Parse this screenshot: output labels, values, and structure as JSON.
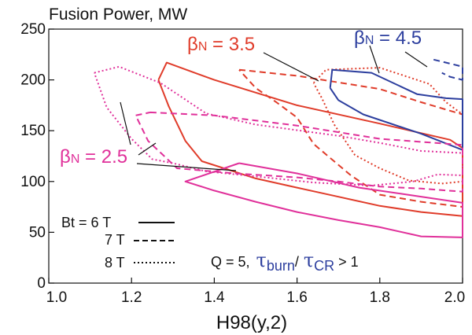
{
  "chart_data": {
    "type": "line",
    "title": "Fusion Power, MW",
    "xlabel": "H98(y,2)",
    "ylabel": "",
    "xlim": [
      1.0,
      2.0
    ],
    "ylim": [
      0,
      250
    ],
    "x_ticks": [
      "1.0",
      "1.2",
      "1.4",
      "1.6",
      "1.8",
      "2.0"
    ],
    "y_ticks": [
      "0",
      "50",
      "100",
      "150",
      "200",
      "250"
    ],
    "grid": false,
    "colors": {
      "beta_3_5": "#e03c2a",
      "beta_4_5": "#2c3e9e",
      "beta_2_5": "#e0309a",
      "axis": "#111111"
    },
    "beta_labels": [
      {
        "id": "beta35",
        "symbol": "β",
        "sub": "N",
        "rest": " = 3.5",
        "color": "#e03c2a"
      },
      {
        "id": "beta45",
        "symbol": "β",
        "sub": "N",
        "rest": " = 4.5",
        "color": "#2c3e9e"
      },
      {
        "id": "beta25",
        "symbol": "β",
        "sub": "N",
        "rest": " = 2.5",
        "color": "#e0309a"
      }
    ],
    "legend": [
      {
        "label": "Bt = 6 T",
        "style": "solid"
      },
      {
        "label": "7 T",
        "style": "dashed"
      },
      {
        "label": "8 T",
        "style": "dotted"
      }
    ],
    "condition": {
      "prefix": "Q = 5,",
      "tau": "τ",
      "burn": "burn",
      "cr": "CR",
      "suffix": " > 1"
    },
    "series": [
      {
        "beta": "3.5",
        "bt": "6",
        "color": "#e03c2a",
        "style": "solid",
        "points": [
          [
            1.265,
            200
          ],
          [
            1.285,
            217
          ],
          [
            1.4,
            200
          ],
          [
            1.6,
            175
          ],
          [
            1.8,
            157
          ],
          [
            1.97,
            141
          ],
          [
            2.0,
            133
          ],
          [
            2.0,
            66
          ],
          [
            1.9,
            70
          ],
          [
            1.8,
            76
          ],
          [
            1.7,
            85
          ],
          [
            1.6,
            94
          ],
          [
            1.5,
            103
          ],
          [
            1.37,
            120
          ],
          [
            1.33,
            140
          ],
          [
            1.29,
            174
          ],
          [
            1.265,
            200
          ]
        ]
      },
      {
        "beta": "3.5",
        "bt": "7",
        "color": "#e03c2a",
        "style": "dashed",
        "points": [
          [
            1.46,
            210
          ],
          [
            1.6,
            204
          ],
          [
            1.8,
            191
          ],
          [
            1.9,
            178
          ],
          [
            2.0,
            166
          ],
          [
            2.0,
            75
          ],
          [
            1.9,
            80
          ],
          [
            1.8,
            87
          ],
          [
            1.73,
            106
          ],
          [
            1.64,
            137
          ],
          [
            1.6,
            163
          ],
          [
            1.55,
            178
          ],
          [
            1.5,
            192
          ],
          [
            1.46,
            210
          ]
        ]
      },
      {
        "beta": "3.5",
        "bt": "8",
        "color": "#e03c2a",
        "style": "dotted",
        "points": [
          [
            1.64,
            197
          ],
          [
            1.67,
            210
          ],
          [
            1.8,
            212
          ],
          [
            1.92,
            196
          ],
          [
            1.96,
            178
          ],
          [
            2.0,
            166
          ],
          [
            2.0,
            100
          ],
          [
            1.95,
            98
          ],
          [
            1.87,
            101
          ],
          [
            1.8,
            113
          ],
          [
            1.74,
            126
          ],
          [
            1.69,
            156
          ],
          [
            1.66,
            182
          ],
          [
            1.64,
            197
          ]
        ]
      },
      {
        "beta": "4.5",
        "bt": "6",
        "color": "#2c3e9e",
        "style": "solid",
        "points": [
          [
            1.68,
            192
          ],
          [
            1.685,
            210
          ],
          [
            1.78,
            207
          ],
          [
            1.89,
            186
          ],
          [
            1.96,
            182
          ],
          [
            2.0,
            181
          ],
          [
            2.0,
            131
          ],
          [
            1.9,
            147
          ],
          [
            1.76,
            166
          ],
          [
            1.7,
            180
          ],
          [
            1.68,
            192
          ]
        ]
      },
      {
        "beta": "4.5",
        "bt": "7",
        "color": "#2c3e9e",
        "style": "dashed",
        "points": [
          [
            1.93,
            220
          ],
          [
            1.98,
            215
          ],
          [
            2.0,
            213
          ],
          [
            2.0,
            200
          ],
          [
            1.97,
            203
          ],
          [
            1.95,
            207
          ]
        ]
      },
      {
        "beta": "2.5",
        "bt": "6",
        "color": "#e0309a",
        "style": "solid",
        "points": [
          [
            1.46,
            118
          ],
          [
            1.6,
            108
          ],
          [
            1.75,
            94
          ],
          [
            1.85,
            88
          ],
          [
            2.0,
            79
          ],
          [
            2.0,
            45
          ],
          [
            1.9,
            46
          ],
          [
            1.8,
            55
          ],
          [
            1.7,
            62
          ],
          [
            1.6,
            70
          ],
          [
            1.5,
            80
          ],
          [
            1.4,
            91
          ],
          [
            1.33,
            100
          ],
          [
            1.46,
            118
          ]
        ]
      },
      {
        "beta": "2.5",
        "bt": "7",
        "color": "#e0309a",
        "style": "dashed",
        "points": [
          [
            1.245,
            168
          ],
          [
            1.4,
            165
          ],
          [
            1.6,
            155
          ],
          [
            1.8,
            142
          ],
          [
            2.0,
            136
          ],
          [
            2.0,
            90
          ],
          [
            1.9,
            93
          ],
          [
            1.8,
            95
          ],
          [
            1.7,
            100
          ],
          [
            1.6,
            104
          ],
          [
            1.45,
            108
          ],
          [
            1.31,
            113
          ],
          [
            1.24,
            140
          ],
          [
            1.21,
            165
          ],
          [
            1.245,
            168
          ]
        ]
      },
      {
        "beta": "2.5",
        "bt": "8",
        "color": "#e0309a",
        "style": "dotted",
        "points": [
          [
            1.11,
            207
          ],
          [
            1.17,
            213
          ],
          [
            1.27,
            197
          ],
          [
            1.38,
            167
          ],
          [
            1.5,
            156
          ],
          [
            1.7,
            145
          ],
          [
            1.8,
            138
          ],
          [
            1.9,
            130
          ],
          [
            2.0,
            128
          ],
          [
            2.0,
            106
          ],
          [
            1.94,
            107
          ],
          [
            1.88,
            100
          ],
          [
            1.78,
            96
          ],
          [
            1.64,
            99
          ],
          [
            1.5,
            105
          ],
          [
            1.38,
            110
          ],
          [
            1.3,
            118
          ],
          [
            1.25,
            122
          ],
          [
            1.2,
            142
          ],
          [
            1.14,
            173
          ],
          [
            1.11,
            207
          ]
        ]
      }
    ]
  }
}
